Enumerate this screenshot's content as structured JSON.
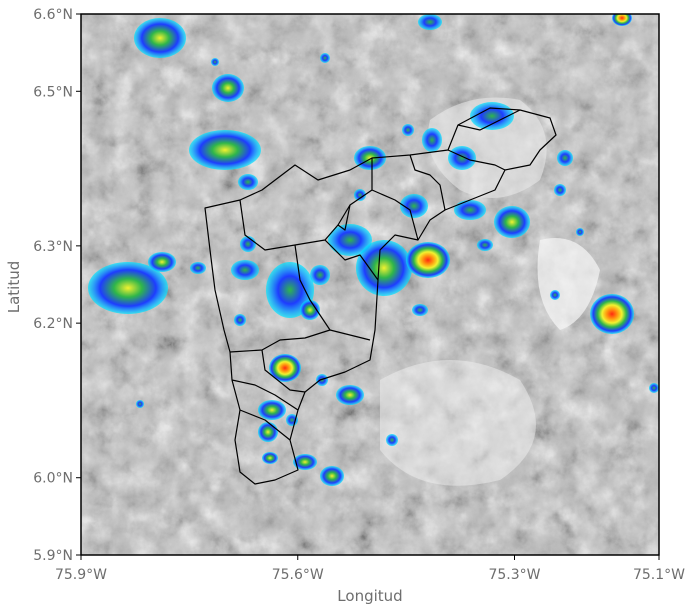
{
  "map": {
    "x_axis": {
      "title": "Longitud",
      "ticks": [
        {
          "value": -75.9,
          "label": "75.9°W"
        },
        {
          "value": -75.6,
          "label": "75.6°W"
        },
        {
          "value": -75.3,
          "label": "75.3°W"
        },
        {
          "value": -75.1,
          "label": "75.1°W"
        }
      ],
      "range": [
        -75.9,
        -75.1
      ]
    },
    "y_axis": {
      "title": "Latitud",
      "ticks": [
        {
          "value": 6.6,
          "label": "6.6°N"
        },
        {
          "value": 6.5,
          "label": "6.5°N"
        },
        {
          "value": 6.3,
          "label": "6.3°N"
        },
        {
          "value": 6.2,
          "label": "6.2°N"
        },
        {
          "value": 6.0,
          "label": "6.0°N"
        },
        {
          "value": 5.9,
          "label": "5.9°N"
        }
      ],
      "range": [
        5.9,
        6.6
      ]
    },
    "basemap": "grayscale-shaded-relief",
    "overlay": "radar-reflectivity",
    "colors": {
      "frame": "#000000",
      "boundary": "#000000",
      "radar_low": "#00e5ff",
      "radar_mid_low": "#1e3cff",
      "radar_mid": "#2fb64a",
      "radar_mid_high": "#f2f230",
      "radar_high": "#ff2a10"
    }
  }
}
